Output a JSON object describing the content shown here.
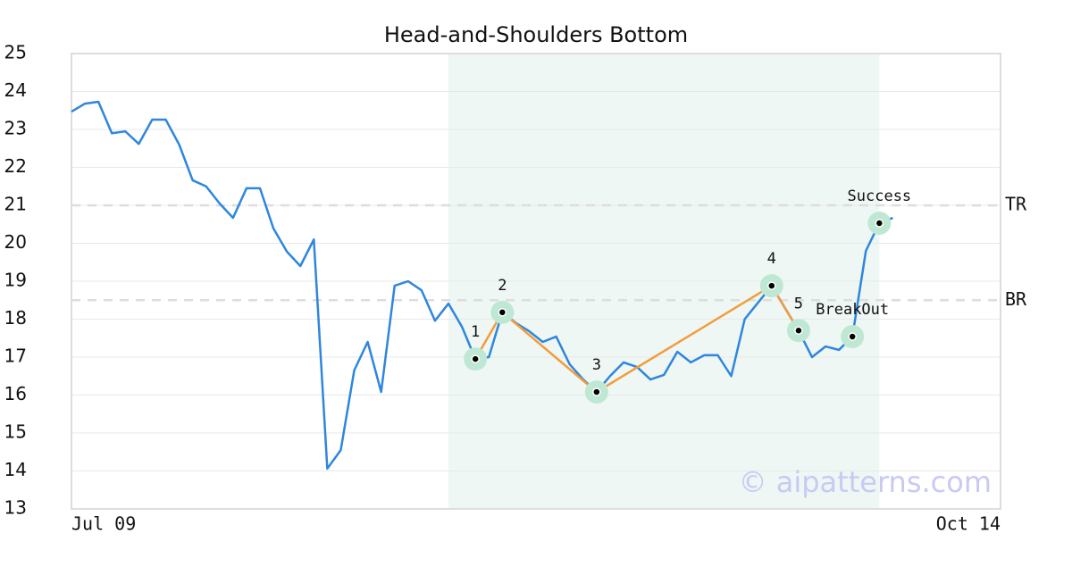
{
  "chart_data": {
    "type": "line",
    "title": "Head-and-Shoulders Bottom",
    "x": [
      0,
      1,
      2,
      3,
      4,
      5,
      6,
      7,
      8,
      9,
      10,
      11,
      12,
      13,
      14,
      15,
      16,
      17,
      18,
      19,
      20,
      21,
      22,
      23,
      24,
      25,
      26,
      27,
      28,
      29,
      30,
      31,
      32,
      33,
      34,
      35,
      36,
      37,
      38,
      39,
      40,
      41,
      42,
      43,
      44,
      45,
      46,
      47,
      48,
      49,
      50,
      51,
      52,
      53,
      54,
      55,
      56,
      57,
      58,
      59,
      60,
      61
    ],
    "values": [
      23.47,
      23.68,
      23.73,
      22.9,
      22.95,
      22.62,
      23.26,
      23.26,
      22.6,
      21.66,
      21.5,
      21.05,
      20.67,
      21.45,
      21.45,
      20.39,
      19.78,
      19.4,
      20.1,
      14.06,
      14.55,
      16.65,
      17.4,
      16.08,
      18.88,
      19.0,
      18.76,
      17.96,
      18.41,
      17.8,
      16.95,
      17.0,
      18.18,
      17.9,
      17.68,
      17.4,
      17.54,
      16.81,
      16.41,
      16.08,
      16.5,
      16.86,
      16.74,
      16.41,
      16.53,
      17.14,
      16.86,
      17.05,
      17.05,
      16.5,
      18.0,
      18.44,
      18.88,
      18.29,
      17.7,
      17.0,
      17.28,
      17.19,
      17.54,
      19.8,
      20.53,
      20.67
    ],
    "color": "#2e86de",
    "xlim": [
      0,
      69
    ],
    "xticks": [
      {
        "value": 0,
        "label": "Jul 09"
      },
      {
        "value": 69,
        "label": "Oct 14"
      }
    ],
    "ylim": [
      13,
      25
    ],
    "yticks": [
      13,
      14,
      15,
      16,
      17,
      18,
      19,
      20,
      21,
      22,
      23,
      24,
      25
    ],
    "grid": true,
    "highlight_x": [
      28,
      60
    ],
    "highlight_color": "#eef7f3",
    "pattern_color": "#f39c3c",
    "marker_color": "#bfe8d4",
    "pattern_points": [
      {
        "x": 30,
        "y": 16.95,
        "label": "1"
      },
      {
        "x": 32,
        "y": 18.18,
        "label": "2"
      },
      {
        "x": 39,
        "y": 16.08,
        "label": "3"
      },
      {
        "x": 52,
        "y": 18.88,
        "label": "4"
      },
      {
        "x": 54,
        "y": 17.7,
        "label": "5"
      }
    ],
    "signal_points": [
      {
        "x": 58,
        "y": 17.54,
        "label": "BreakOut"
      },
      {
        "x": 60,
        "y": 20.53,
        "label": "Success"
      }
    ],
    "levels": [
      {
        "value": 21.0,
        "label": "TR"
      },
      {
        "value": 18.5,
        "label": "BR"
      }
    ],
    "watermark": "© aipatterns.com"
  }
}
